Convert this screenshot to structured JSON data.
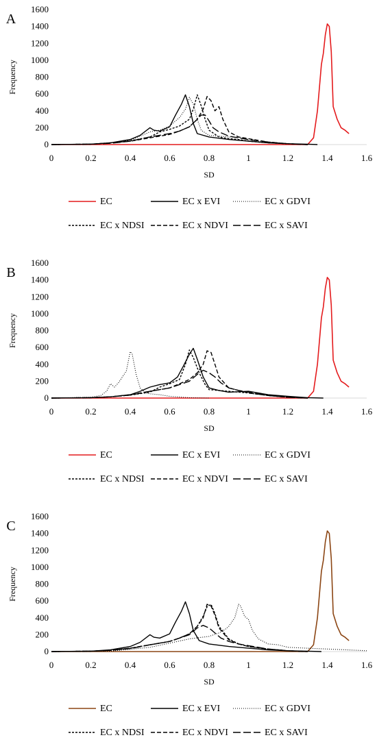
{
  "colors": {
    "black": "#000000",
    "red": "#e41a1c",
    "brown": "#8b4513",
    "axis": "#d9d9d9"
  },
  "panels_meta": [
    {
      "letter": "A",
      "ec_color": "#e41a1c"
    },
    {
      "letter": "B",
      "ec_color": "#e41a1c"
    },
    {
      "letter": "C",
      "ec_color": "#8b4513"
    }
  ],
  "chart_data": [
    {
      "type": "line",
      "panel": "A",
      "xlabel": "SD",
      "ylabel": "Frequency",
      "xlim": [
        0,
        1.6
      ],
      "ylim": [
        0,
        1600
      ],
      "xticks": [
        "0",
        "0.2",
        "0.4",
        "0.6",
        "0.8",
        "1",
        "1.2",
        "1.4",
        "1.6"
      ],
      "yticks": [
        "0",
        "200",
        "400",
        "600",
        "800",
        "1000",
        "1200",
        "1400",
        "1600"
      ],
      "legend": [
        "EC",
        "EC x EVI",
        "EC x GDVI",
        "EC x NDSI",
        "EC x NDVI",
        "EC x SAVI"
      ],
      "series": [
        {
          "name": "EC",
          "x": [
            0,
            1.3,
            1.33,
            1.35,
            1.37,
            1.38,
            1.39,
            1.4,
            1.41,
            1.42,
            1.43,
            1.45,
            1.47,
            1.49,
            1.51
          ],
          "y": [
            0,
            0,
            80,
            400,
            950,
            1080,
            1300,
            1430,
            1400,
            1100,
            450,
            300,
            200,
            170,
            130
          ]
        },
        {
          "name": "EC x EVI",
          "x": [
            0,
            0.2,
            0.3,
            0.4,
            0.45,
            0.5,
            0.52,
            0.55,
            0.6,
            0.63,
            0.66,
            0.68,
            0.7,
            0.72,
            0.74,
            0.8,
            0.9,
            1.0,
            1.1,
            1.2,
            1.3,
            1.35
          ],
          "y": [
            0,
            5,
            20,
            60,
            110,
            200,
            170,
            160,
            210,
            350,
            480,
            590,
            450,
            250,
            130,
            90,
            60,
            40,
            20,
            10,
            5,
            0
          ]
        },
        {
          "name": "EC x GDVI",
          "x": [
            0,
            0.2,
            0.3,
            0.4,
            0.45,
            0.5,
            0.55,
            0.6,
            0.65,
            0.68,
            0.7,
            0.72,
            0.74,
            0.76,
            0.8,
            0.85,
            0.9,
            0.95,
            1.0,
            1.1,
            1.2,
            1.3
          ],
          "y": [
            0,
            5,
            20,
            50,
            100,
            150,
            170,
            220,
            320,
            420,
            560,
            480,
            300,
            170,
            110,
            100,
            90,
            85,
            50,
            25,
            10,
            0
          ]
        },
        {
          "name": "EC x NDSI",
          "x": [
            0,
            0.2,
            0.3,
            0.4,
            0.5,
            0.55,
            0.6,
            0.65,
            0.7,
            0.72,
            0.74,
            0.76,
            0.78,
            0.8,
            0.85,
            0.9,
            0.95,
            1.0,
            1.1,
            1.2,
            1.3
          ],
          "y": [
            0,
            5,
            20,
            45,
            90,
            150,
            180,
            220,
            300,
            420,
            590,
            460,
            300,
            170,
            90,
            70,
            60,
            40,
            20,
            10,
            0
          ]
        },
        {
          "name": "EC x NDVI",
          "x": [
            0,
            0.2,
            0.3,
            0.4,
            0.5,
            0.6,
            0.65,
            0.7,
            0.74,
            0.77,
            0.79,
            0.81,
            0.83,
            0.85,
            0.87,
            0.9,
            0.95,
            1.0,
            1.1,
            1.2,
            1.3
          ],
          "y": [
            0,
            5,
            20,
            40,
            80,
            120,
            160,
            210,
            300,
            420,
            570,
            520,
            400,
            450,
            300,
            150,
            90,
            70,
            30,
            10,
            0
          ]
        },
        {
          "name": "EC x SAVI",
          "x": [
            0,
            0.2,
            0.3,
            0.4,
            0.5,
            0.6,
            0.65,
            0.7,
            0.74,
            0.76,
            0.78,
            0.8,
            0.82,
            0.85,
            0.9,
            0.95,
            1.0,
            1.1,
            1.2,
            1.3
          ],
          "y": [
            0,
            5,
            15,
            40,
            90,
            130,
            160,
            210,
            300,
            350,
            350,
            280,
            200,
            150,
            100,
            80,
            60,
            30,
            10,
            0
          ]
        }
      ]
    },
    {
      "type": "line",
      "panel": "B",
      "xlabel": "SD",
      "ylabel": "Frequency",
      "xlim": [
        0,
        1.6
      ],
      "ylim": [
        0,
        1600
      ],
      "xticks": [
        "0",
        "0.2",
        "0.4",
        "0.6",
        "0.8",
        "1",
        "1.2",
        "1.4",
        "1.6"
      ],
      "yticks": [
        "0",
        "200",
        "400",
        "600",
        "800",
        "1000",
        "1200",
        "1400",
        "1600"
      ],
      "legend": [
        "EC",
        "EC x EVI",
        "EC x GDVI",
        "EC x NDSI",
        "EC x NDVI",
        "EC x SAVI"
      ],
      "series": [
        {
          "name": "EC",
          "x": [
            0,
            1.3,
            1.33,
            1.35,
            1.37,
            1.38,
            1.39,
            1.4,
            1.41,
            1.42,
            1.43,
            1.45,
            1.47,
            1.49,
            1.51
          ],
          "y": [
            0,
            0,
            80,
            400,
            950,
            1080,
            1300,
            1430,
            1400,
            1100,
            450,
            300,
            200,
            170,
            130
          ]
        },
        {
          "name": "EC x EVI",
          "x": [
            0,
            0.2,
            0.3,
            0.4,
            0.45,
            0.5,
            0.55,
            0.6,
            0.64,
            0.67,
            0.7,
            0.72,
            0.74,
            0.77,
            0.8,
            0.85,
            0.9,
            1.0,
            1.1,
            1.2,
            1.3,
            1.38
          ],
          "y": [
            0,
            5,
            15,
            40,
            80,
            130,
            160,
            180,
            250,
            380,
            520,
            590,
            460,
            250,
            120,
            90,
            70,
            80,
            40,
            20,
            5,
            0
          ]
        },
        {
          "name": "EC x GDVI",
          "x": [
            0,
            0.2,
            0.25,
            0.28,
            0.3,
            0.32,
            0.34,
            0.36,
            0.38,
            0.4,
            0.41,
            0.43,
            0.45,
            0.48,
            0.5,
            0.55,
            0.6,
            0.7,
            0.8
          ],
          "y": [
            0,
            10,
            30,
            80,
            170,
            130,
            180,
            250,
            320,
            550,
            520,
            280,
            120,
            60,
            50,
            40,
            20,
            5,
            0
          ]
        },
        {
          "name": "EC x NDSI",
          "x": [
            0,
            0.2,
            0.3,
            0.4,
            0.5,
            0.55,
            0.6,
            0.65,
            0.68,
            0.7,
            0.72,
            0.75,
            0.78,
            0.8,
            0.85,
            0.9,
            1.0,
            1.1,
            1.2,
            1.3
          ],
          "y": [
            0,
            5,
            15,
            35,
            70,
            130,
            170,
            220,
            400,
            570,
            480,
            300,
            160,
            100,
            90,
            80,
            60,
            30,
            10,
            0
          ]
        },
        {
          "name": "EC x NDVI",
          "x": [
            0,
            0.2,
            0.3,
            0.4,
            0.5,
            0.6,
            0.65,
            0.7,
            0.74,
            0.77,
            0.79,
            0.81,
            0.83,
            0.85,
            0.9,
            0.95,
            1.0,
            1.1,
            1.2,
            1.3
          ],
          "y": [
            0,
            5,
            15,
            40,
            80,
            120,
            170,
            220,
            300,
            400,
            560,
            540,
            400,
            250,
            120,
            90,
            60,
            30,
            10,
            0
          ]
        },
        {
          "name": "EC x SAVI",
          "x": [
            0,
            0.2,
            0.3,
            0.4,
            0.5,
            0.6,
            0.65,
            0.7,
            0.74,
            0.77,
            0.8,
            0.83,
            0.86,
            0.9,
            0.95,
            1.0,
            1.1,
            1.2,
            1.3
          ],
          "y": [
            0,
            5,
            15,
            35,
            80,
            120,
            160,
            200,
            280,
            330,
            300,
            250,
            180,
            120,
            90,
            70,
            30,
            10,
            0
          ]
        }
      ]
    },
    {
      "type": "line",
      "panel": "C",
      "xlabel": "SD",
      "ylabel": "Frequency",
      "xlim": [
        0,
        1.6
      ],
      "ylim": [
        0,
        1600
      ],
      "xticks": [
        "0",
        "0.2",
        "0.4",
        "0.6",
        "0.8",
        "1",
        "1.2",
        "1.4",
        "1.6"
      ],
      "yticks": [
        "0",
        "200",
        "400",
        "600",
        "800",
        "1000",
        "1200",
        "1400",
        "1600"
      ],
      "legend": [
        "EC",
        "EC x EVI",
        "EC x GDVI",
        "EC x NDSI",
        "EC x NDVI",
        "EC x SAVI"
      ],
      "series": [
        {
          "name": "EC",
          "x": [
            0,
            1.3,
            1.33,
            1.35,
            1.37,
            1.38,
            1.39,
            1.4,
            1.41,
            1.42,
            1.43,
            1.45,
            1.47,
            1.49,
            1.51
          ],
          "y": [
            0,
            0,
            80,
            400,
            950,
            1080,
            1300,
            1430,
            1400,
            1100,
            450,
            300,
            200,
            170,
            130
          ]
        },
        {
          "name": "EC x EVI",
          "x": [
            0,
            0.2,
            0.3,
            0.4,
            0.45,
            0.5,
            0.52,
            0.55,
            0.6,
            0.63,
            0.66,
            0.68,
            0.7,
            0.72,
            0.75,
            0.8,
            0.9,
            1.0,
            1.1,
            1.2,
            1.3,
            1.37
          ],
          "y": [
            0,
            5,
            20,
            60,
            110,
            200,
            170,
            160,
            210,
            350,
            480,
            590,
            450,
            250,
            130,
            90,
            60,
            40,
            20,
            10,
            5,
            0
          ]
        },
        {
          "name": "EC x GDVI",
          "x": [
            0,
            0.3,
            0.5,
            0.6,
            0.7,
            0.8,
            0.85,
            0.88,
            0.9,
            0.93,
            0.95,
            0.96,
            0.98,
            1.0,
            1.02,
            1.05,
            1.1,
            1.15,
            1.2,
            1.3,
            1.4,
            1.5,
            1.6
          ],
          "y": [
            0,
            5,
            50,
            100,
            150,
            180,
            220,
            260,
            300,
            400,
            560,
            540,
            420,
            380,
            250,
            150,
            90,
            80,
            50,
            40,
            30,
            20,
            10
          ]
        },
        {
          "name": "EC x NDSI",
          "x": [
            0,
            0.2,
            0.3,
            0.4,
            0.5,
            0.6,
            0.65,
            0.7,
            0.74,
            0.77,
            0.79,
            0.81,
            0.83,
            0.85,
            0.9,
            0.95,
            1.0,
            1.1,
            1.2,
            1.3
          ],
          "y": [
            0,
            5,
            15,
            40,
            80,
            120,
            160,
            210,
            300,
            420,
            530,
            560,
            450,
            300,
            150,
            90,
            60,
            30,
            10,
            0
          ]
        },
        {
          "name": "EC x NDVI",
          "x": [
            0,
            0.2,
            0.3,
            0.4,
            0.5,
            0.6,
            0.65,
            0.7,
            0.74,
            0.77,
            0.79,
            0.81,
            0.83,
            0.85,
            0.9,
            0.95,
            1.0,
            1.1,
            1.2,
            1.3
          ],
          "y": [
            0,
            5,
            15,
            40,
            80,
            120,
            160,
            210,
            300,
            400,
            560,
            540,
            430,
            280,
            140,
            90,
            60,
            30,
            10,
            0
          ]
        },
        {
          "name": "EC x SAVI",
          "x": [
            0,
            0.2,
            0.3,
            0.4,
            0.5,
            0.6,
            0.65,
            0.7,
            0.74,
            0.77,
            0.8,
            0.83,
            0.86,
            0.9,
            0.95,
            1.0,
            1.1,
            1.2,
            1.3
          ],
          "y": [
            0,
            5,
            15,
            35,
            80,
            120,
            160,
            200,
            280,
            310,
            280,
            220,
            160,
            120,
            90,
            70,
            30,
            10,
            0
          ]
        }
      ]
    }
  ]
}
